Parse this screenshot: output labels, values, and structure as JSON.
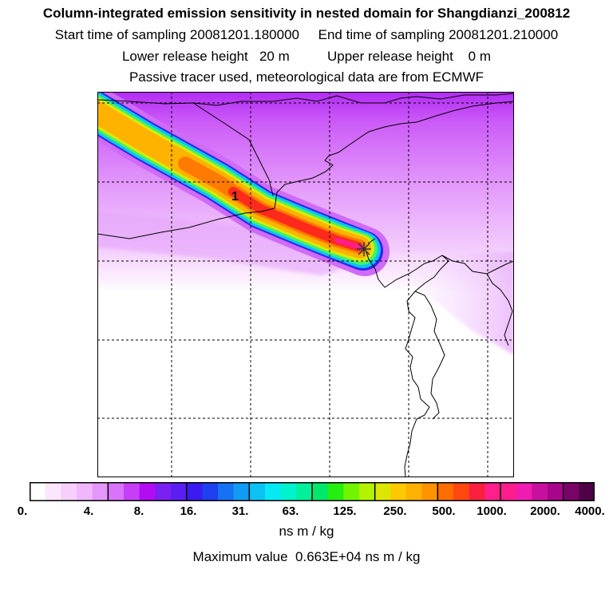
{
  "header": {
    "title": "Column-integrated emission sensitivity in nested domain for Shangdianzi_200812",
    "line2": "Start time of sampling 20081201.180000     End time of sampling 20081201.210000",
    "line3": "Lower release height   20 m          Upper release height    0 m",
    "line4": "Passive tracer used, meteorological data are from ECMWF"
  },
  "map": {
    "marker_label": "1",
    "release_site": "Shangdianzi"
  },
  "colorbar": {
    "colors": [
      "#ffffff",
      "#fbe6fe",
      "#f6cffd",
      "#f0b7fc",
      "#e596fb",
      "#d873fa",
      "#c63ff6",
      "#b20cf3",
      "#7a20f0",
      "#5a1ef0",
      "#3b1bef",
      "#1f3ff2",
      "#1572f3",
      "#109cf3",
      "#0cc2f4",
      "#06e8f4",
      "#00f3cc",
      "#00f09a",
      "#00e86c",
      "#24ef10",
      "#71f400",
      "#b3f200",
      "#dde600",
      "#ffc800",
      "#ffb100",
      "#ff9300",
      "#ff6c00",
      "#ff4710",
      "#f91f3e",
      "#ff1f8c",
      "#ff1d8e",
      "#f01cb0",
      "#c90fa0",
      "#a7068b",
      "#7a0367",
      "#4f0046"
    ],
    "dividers": [
      0,
      0,
      0,
      0,
      0,
      1,
      0,
      0,
      0,
      0,
      1,
      0,
      0,
      0,
      1,
      0,
      0,
      0,
      1,
      0,
      0,
      0,
      1,
      0,
      0,
      0,
      1,
      0,
      0,
      0,
      1,
      0,
      0,
      0,
      1,
      0,
      0
    ],
    "tick_labels": [
      "0.",
      "4.",
      "8.",
      "16.",
      "31.",
      "63.",
      "125.",
      "250.",
      "500.",
      "1000.",
      "2000.",
      "4000."
    ],
    "units": "ns m / kg",
    "max_value_text": "Maximum value  0.663E+04 ns m / kg"
  }
}
